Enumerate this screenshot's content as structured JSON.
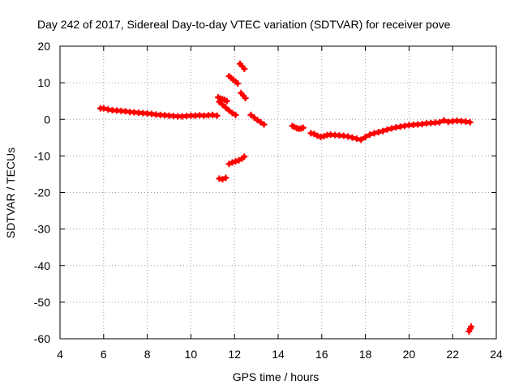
{
  "chart_data": {
    "type": "scatter",
    "title": "Day 242 of 2017, Sidereal Day-to-day VTEC variation (SDTVAR) for receiver pove",
    "xlabel": "GPS time / hours",
    "ylabel": "SDTVAR / TECUs",
    "xlim": [
      4,
      24
    ],
    "ylim": [
      -60,
      20
    ],
    "xticks": [
      4,
      6,
      8,
      10,
      12,
      14,
      16,
      18,
      20,
      22,
      24
    ],
    "yticks": [
      20,
      10,
      0,
      -10,
      -20,
      -30,
      -40,
      -50,
      -60
    ],
    "grid": true,
    "series": [
      {
        "name": "SDTVAR",
        "color": "#ff0000",
        "marker": "plus",
        "segments": [
          {
            "x": [
              5.85,
              6.0,
              6.2,
              6.4,
              6.6,
              6.8,
              7.0,
              7.2,
              7.4,
              7.6,
              7.8,
              8.0,
              8.2,
              8.4,
              8.6,
              8.8,
              9.0,
              9.2,
              9.4,
              9.6,
              9.8,
              10.0,
              10.2,
              10.4,
              10.6,
              10.8,
              11.0,
              11.2
            ],
            "y": [
              3.0,
              3.0,
              2.7,
              2.5,
              2.4,
              2.3,
              2.2,
              2.0,
              1.9,
              1.8,
              1.7,
              1.6,
              1.5,
              1.3,
              1.2,
              1.1,
              1.0,
              0.9,
              0.8,
              0.8,
              0.9,
              1.0,
              1.0,
              1.1,
              1.0,
              1.1,
              1.2,
              1.0
            ]
          },
          {
            "x": [
              11.25,
              11.35,
              11.45,
              11.55,
              11.65
            ],
            "y": [
              6.0,
              5.7,
              5.5,
              5.3,
              5.0
            ]
          },
          {
            "x": [
              11.3,
              11.45,
              11.6,
              11.75,
              11.9,
              12.05
            ],
            "y": [
              4.8,
              4.0,
              3.2,
              2.4,
              1.7,
              1.2
            ]
          },
          {
            "x": [
              11.75,
              11.85,
              11.95,
              12.05,
              12.15
            ],
            "y": [
              11.8,
              11.3,
              10.8,
              10.3,
              9.8
            ]
          },
          {
            "x": [
              12.25,
              12.35,
              12.45
            ],
            "y": [
              15.2,
              14.5,
              13.8
            ]
          },
          {
            "x": [
              12.3,
              12.4,
              12.5
            ],
            "y": [
              7.2,
              6.5,
              5.8
            ]
          },
          {
            "x": [
              12.75,
              12.9,
              13.05,
              13.2,
              13.35
            ],
            "y": [
              1.2,
              0.5,
              -0.2,
              -0.8,
              -1.4
            ]
          },
          {
            "x": [
              11.3,
              11.45,
              11.6
            ],
            "y": [
              -16.2,
              -16.4,
              -16.0
            ]
          },
          {
            "x": [
              11.75,
              11.9,
              12.05,
              12.2,
              12.35,
              12.45
            ],
            "y": [
              -12.2,
              -11.8,
              -11.5,
              -11.2,
              -10.7,
              -10.2
            ]
          },
          {
            "x": [
              14.65,
              14.75,
              14.85,
              14.95,
              15.05,
              15.15
            ],
            "y": [
              -1.8,
              -2.1,
              -2.4,
              -2.6,
              -2.5,
              -2.3
            ]
          },
          {
            "x": [
              15.5,
              15.65,
              15.8,
              15.95,
              16.1,
              16.25,
              16.4,
              16.6,
              16.8,
              17.0,
              17.2,
              17.4,
              17.6,
              17.8,
              18.0,
              18.2,
              18.4,
              18.6,
              18.8,
              19.0,
              19.2,
              19.4,
              19.6,
              19.8,
              20.0,
              20.2,
              20.4,
              20.6,
              20.8,
              21.0,
              21.2,
              21.4,
              21.6,
              21.8,
              22.0,
              22.2,
              22.4,
              22.6,
              22.8
            ],
            "y": [
              -3.8,
              -4.0,
              -4.5,
              -4.8,
              -4.6,
              -4.3,
              -4.2,
              -4.3,
              -4.4,
              -4.5,
              -4.7,
              -5.0,
              -5.3,
              -5.6,
              -4.8,
              -4.2,
              -3.8,
              -3.5,
              -3.2,
              -2.8,
              -2.5,
              -2.2,
              -2.0,
              -1.8,
              -1.6,
              -1.5,
              -1.4,
              -1.3,
              -1.1,
              -1.0,
              -0.9,
              -0.8,
              -0.3,
              -0.7,
              -0.5,
              -0.4,
              -0.5,
              -0.6,
              -0.8
            ]
          },
          {
            "x": [
              22.75,
              22.8,
              22.85
            ],
            "y": [
              -58.0,
              -57.3,
              -56.7
            ]
          }
        ]
      }
    ]
  }
}
